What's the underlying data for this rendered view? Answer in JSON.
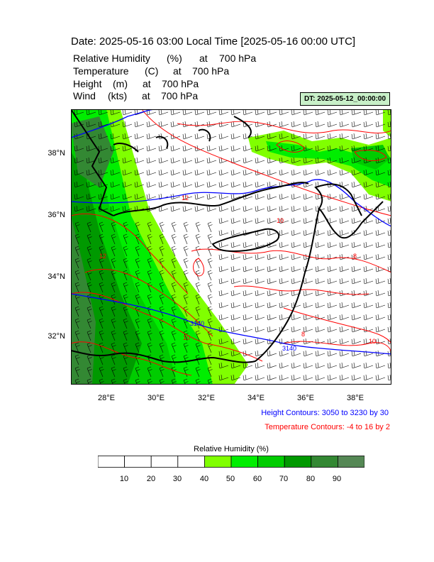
{
  "title": "Date: 2025-05-16  03:00 Local Time [2025-05-16  00:00 UTC]",
  "fields": [
    {
      "name": "Relative Humidity",
      "unit": "(%)",
      "at": "at",
      "level": "700 hPa"
    },
    {
      "name": "Temperature",
      "unit": "(C)",
      "at": "at",
      "level": "700 hPa"
    },
    {
      "name": "Height",
      "unit": "(m)",
      "at": "at",
      "level": "700 hPa"
    },
    {
      "name": "Wind",
      "unit": "(kts)",
      "at": "at",
      "level": "700 hPa"
    }
  ],
  "dt_label": "DT: 2025-05-12_00:00:00",
  "map": {
    "lon_range": [
      26.5,
      39.3
    ],
    "lat_range": [
      30.4,
      39.5
    ],
    "lat_ticks": [
      "38°N",
      "36°N",
      "34°N",
      "32°N"
    ],
    "lon_ticks": [
      "28°E",
      "30°E",
      "32°E",
      "34°E",
      "36°E",
      "38°E"
    ],
    "height_labels": [
      "3140",
      "3140"
    ],
    "temp_labels": [
      "12",
      "10",
      "8",
      "8",
      "10",
      "10",
      "12"
    ],
    "colors": {
      "height_contour": "#0000ff",
      "temp_contour": "#ff0000",
      "coastline": "#000000",
      "wind_barb": "#000000"
    }
  },
  "height_contours_text": "Height Contours: 3050 to 3230 by 30",
  "temp_contours_text": "Temperature Contours: -4 to 16 by 2",
  "colorbar": {
    "title": "Relative Humidity  (%)",
    "labels": [
      "10",
      "20",
      "30",
      "40",
      "50",
      "60",
      "70",
      "80",
      "90"
    ],
    "colors": [
      "#ffffff",
      "#ffffff",
      "#ffffff",
      "#ffffff",
      "#80ff00",
      "#00ee00",
      "#00cc00",
      "#009900",
      "#338833",
      "#558855"
    ]
  }
}
